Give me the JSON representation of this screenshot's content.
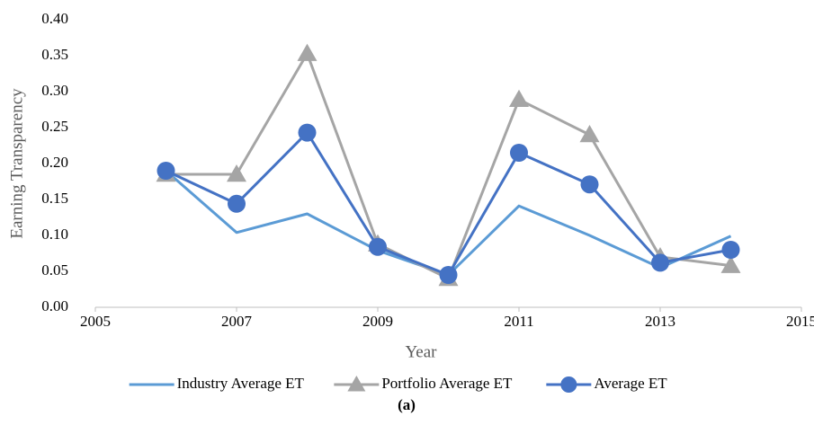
{
  "chart_data": {
    "type": "line",
    "x_label": "Year",
    "y_label": "Earning Transparency",
    "caption": "(a)",
    "xlim": [
      2005,
      2015
    ],
    "xticks": [
      2005,
      2007,
      2009,
      2011,
      2013,
      2015
    ],
    "ylim": [
      0,
      0.4
    ],
    "yticks": [
      {
        "value": 0,
        "label": "0.00"
      },
      0.05,
      {
        "value": 0.1,
        "label": "0.10"
      },
      0.15,
      {
        "value": 0.2,
        "label": "0.20"
      },
      0.25,
      {
        "value": 0.3,
        "label": "0.30"
      },
      0.35,
      {
        "value": 0.4,
        "label": "0.40"
      }
    ],
    "grid": false,
    "legend": "bottom",
    "x": [
      2006,
      2007,
      2008,
      2009,
      2010,
      2011,
      2012,
      2013,
      2014
    ],
    "series": [
      {
        "name": "Industry Average ET",
        "color": "#5b9bd5",
        "values": [
          0.19,
          0.104,
          0.13,
          0.079,
          0.045,
          0.141,
          0.1,
          0.055,
          0.099
        ]
      },
      {
        "name": "Portfolio Average ET",
        "color": "#a5a5a5",
        "marker": "triangle",
        "values": [
          0.185,
          0.185,
          0.353,
          0.088,
          0.04,
          0.289,
          0.24,
          0.07,
          0.058
        ]
      },
      {
        "name": "Average ET",
        "color": "#4472c4",
        "marker": "circle",
        "values": [
          0.19,
          0.144,
          0.243,
          0.084,
          0.045,
          0.215,
          0.171,
          0.062,
          0.08
        ]
      }
    ]
  }
}
